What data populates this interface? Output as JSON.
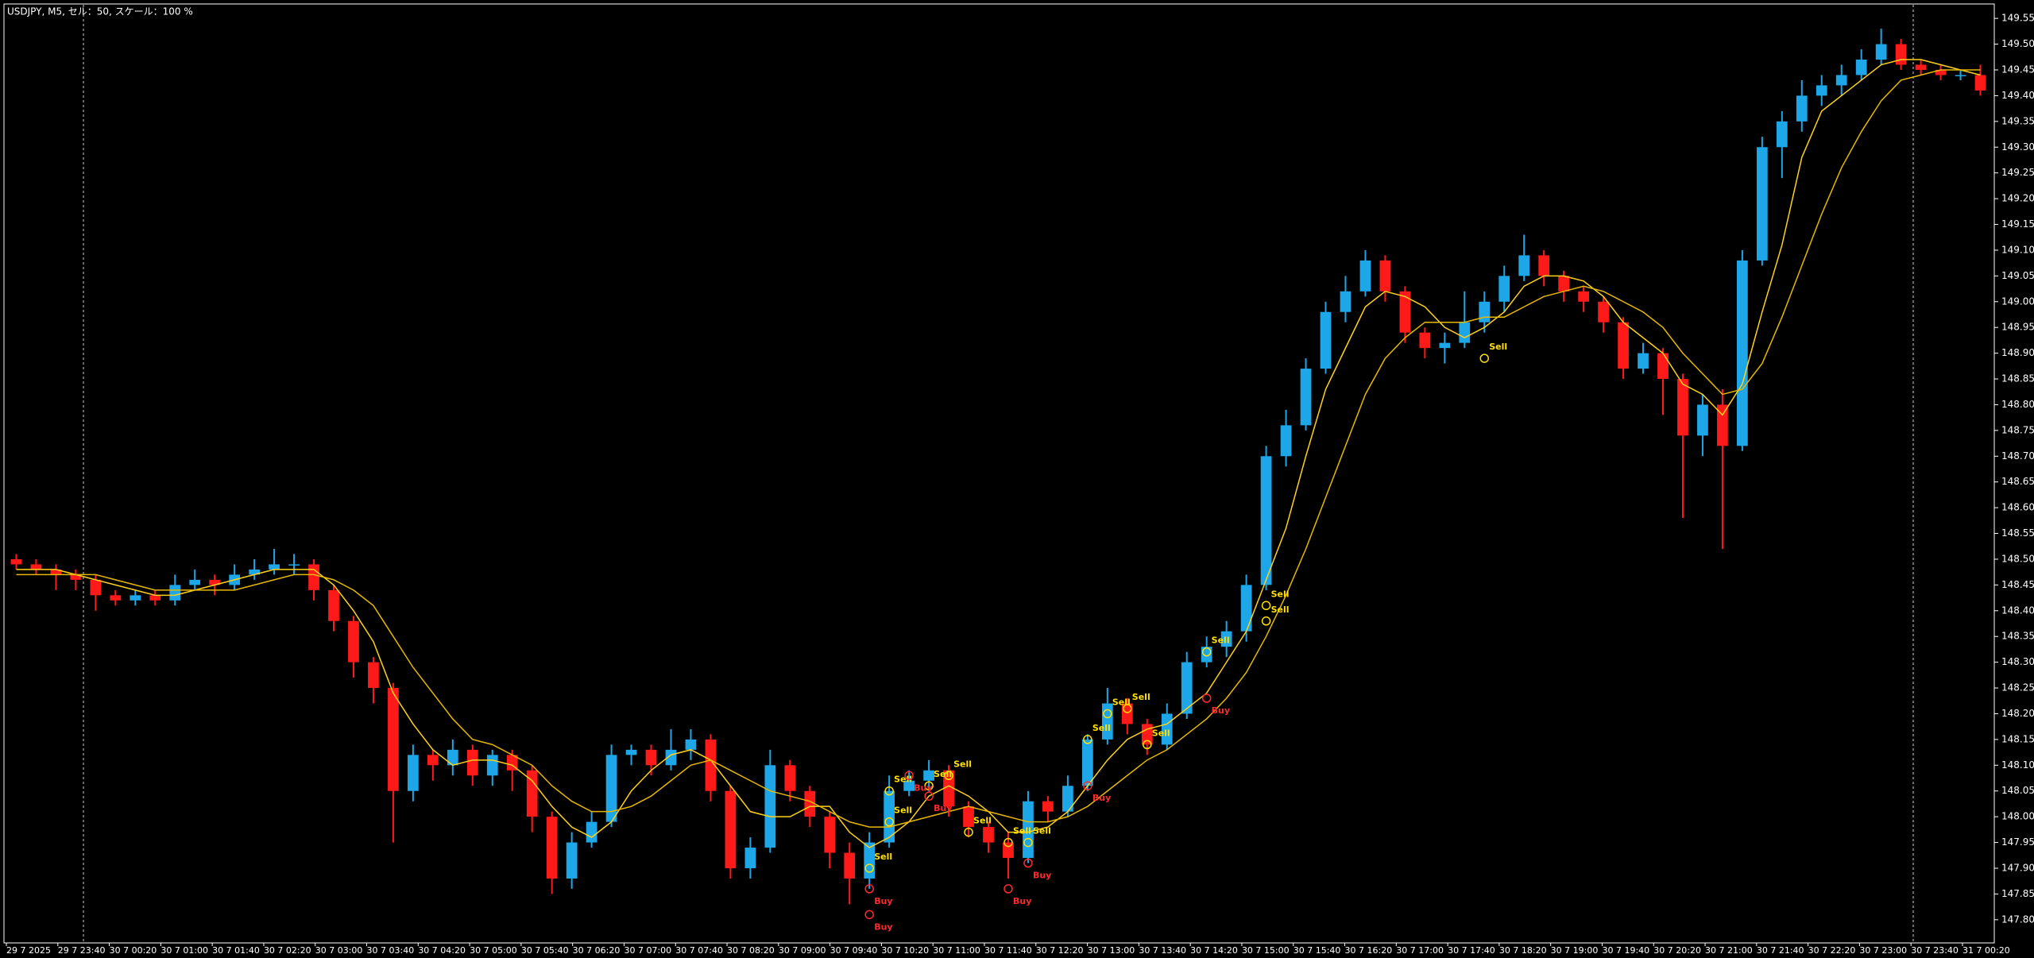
{
  "chart_data": {
    "type": "candlestick",
    "title": "USDJPY, M5, セル：50, スケール：100 %",
    "colors": {
      "up": "#1ea7e8",
      "down": "#ff1a1a"
    },
    "open": [
      148.5,
      148.49,
      148.48,
      148.47,
      148.46,
      148.43,
      148.42,
      148.43,
      148.42,
      148.45,
      148.46,
      148.45,
      148.47,
      148.48,
      148.49,
      148.49,
      148.44,
      148.38,
      148.3,
      148.25,
      148.05,
      148.12,
      148.1,
      148.13,
      148.08,
      148.12,
      148.09,
      148.0,
      147.88,
      147.95,
      147.99,
      148.12,
      148.13,
      148.1,
      148.13,
      148.15,
      148.05,
      147.9,
      147.94,
      148.1,
      148.05,
      148.0,
      147.93,
      147.88,
      147.95,
      148.05,
      148.07,
      148.09,
      148.02,
      147.98,
      147.95,
      147.92,
      148.03,
      148.01,
      148.06,
      148.15,
      148.22,
      148.18,
      148.14,
      148.2,
      148.3,
      148.33,
      148.36,
      148.45,
      148.7,
      148.76,
      148.87,
      148.98,
      149.02,
      149.08,
      149.02,
      148.94,
      148.91,
      148.92,
      148.96,
      149.0,
      149.05,
      149.09,
      149.05,
      149.02,
      149.0,
      148.96,
      148.87,
      148.9,
      148.85,
      148.74,
      148.8,
      148.72,
      149.08,
      149.3,
      149.35,
      149.4,
      149.42,
      149.44,
      149.47,
      149.5,
      149.46,
      149.45,
      149.44,
      149.44
    ],
    "high": [
      148.51,
      148.5,
      148.49,
      148.48,
      148.47,
      148.44,
      148.44,
      148.44,
      148.47,
      148.48,
      148.47,
      148.49,
      148.5,
      148.52,
      148.51,
      148.5,
      148.45,
      148.39,
      148.31,
      148.26,
      148.14,
      148.13,
      148.15,
      148.14,
      148.13,
      148.13,
      148.1,
      148.01,
      147.97,
      148.01,
      148.14,
      148.14,
      148.14,
      148.17,
      148.17,
      148.16,
      148.06,
      147.96,
      148.13,
      148.11,
      148.06,
      148.01,
      147.95,
      147.97,
      148.08,
      148.09,
      148.11,
      148.1,
      148.03,
      147.99,
      147.97,
      148.05,
      148.04,
      148.08,
      148.16,
      148.25,
      148.23,
      148.19,
      148.22,
      148.32,
      148.35,
      148.38,
      148.47,
      148.72,
      148.79,
      148.89,
      149.0,
      149.05,
      149.1,
      149.09,
      149.03,
      148.95,
      148.94,
      149.02,
      149.02,
      149.07,
      149.13,
      149.1,
      149.06,
      149.03,
      149.01,
      148.97,
      148.92,
      148.91,
      148.86,
      148.82,
      148.83,
      149.1,
      149.32,
      149.37,
      149.43,
      149.44,
      149.46,
      149.49,
      149.53,
      149.51,
      149.47,
      149.46,
      149.45,
      149.46
    ],
    "low": [
      148.48,
      148.47,
      148.44,
      148.44,
      148.4,
      148.41,
      148.41,
      148.41,
      148.41,
      148.44,
      148.43,
      148.44,
      148.46,
      148.47,
      148.47,
      148.42,
      148.36,
      148.27,
      148.22,
      147.95,
      148.03,
      148.07,
      148.08,
      148.06,
      148.06,
      148.05,
      147.97,
      147.85,
      147.86,
      147.94,
      147.98,
      148.1,
      148.08,
      148.09,
      148.11,
      148.03,
      147.88,
      147.88,
      147.93,
      148.03,
      147.98,
      147.9,
      147.83,
      147.86,
      147.94,
      148.04,
      148.05,
      148.0,
      147.96,
      147.93,
      147.88,
      147.91,
      147.99,
      148.0,
      148.05,
      148.14,
      148.16,
      148.12,
      148.13,
      148.19,
      148.29,
      148.31,
      148.34,
      148.44,
      148.68,
      148.75,
      148.86,
      148.96,
      149.01,
      149.0,
      148.92,
      148.89,
      148.88,
      148.91,
      148.94,
      148.98,
      149.04,
      149.03,
      149.0,
      148.98,
      148.94,
      148.85,
      148.86,
      148.78,
      148.58,
      148.7,
      148.52,
      148.71,
      149.07,
      149.24,
      149.33,
      149.38,
      149.4,
      149.43,
      149.46,
      149.45,
      149.44,
      149.43,
      149.43,
      149.4
    ],
    "close": [
      148.49,
      148.48,
      148.47,
      148.46,
      148.43,
      148.42,
      148.43,
      148.42,
      148.45,
      148.46,
      148.45,
      148.47,
      148.48,
      148.49,
      148.49,
      148.44,
      148.38,
      148.3,
      148.25,
      148.05,
      148.12,
      148.1,
      148.13,
      148.08,
      148.12,
      148.09,
      148.0,
      147.88,
      147.95,
      147.99,
      148.12,
      148.13,
      148.1,
      148.13,
      148.15,
      148.05,
      147.9,
      147.94,
      148.1,
      148.05,
      148.0,
      147.93,
      147.88,
      147.95,
      148.05,
      148.07,
      148.09,
      148.02,
      147.98,
      147.95,
      147.92,
      148.03,
      148.01,
      148.06,
      148.15,
      148.22,
      148.18,
      148.14,
      148.2,
      148.3,
      148.33,
      148.36,
      148.45,
      148.7,
      148.76,
      148.87,
      148.98,
      149.02,
      149.08,
      149.02,
      148.94,
      148.91,
      148.92,
      148.96,
      149.0,
      149.05,
      149.09,
      149.05,
      149.02,
      149.0,
      148.96,
      148.87,
      148.9,
      148.85,
      148.74,
      148.8,
      148.72,
      149.08,
      149.3,
      149.35,
      149.4,
      149.42,
      149.44,
      149.47,
      149.5,
      149.46,
      149.45,
      149.44,
      149.44,
      149.41
    ],
    "series": [
      {
        "color": "#ffd21a",
        "values": [
          148.48,
          148.48,
          148.48,
          148.47,
          148.46,
          148.45,
          148.44,
          148.43,
          148.43,
          148.44,
          148.45,
          148.46,
          148.47,
          148.48,
          148.48,
          148.48,
          148.45,
          148.4,
          148.34,
          148.24,
          148.18,
          148.13,
          148.1,
          148.11,
          148.11,
          148.1,
          148.07,
          148.02,
          147.98,
          147.96,
          147.99,
          148.05,
          148.09,
          148.12,
          148.13,
          148.11,
          148.06,
          148.01,
          148.0,
          148.0,
          148.02,
          148.02,
          147.97,
          147.94,
          147.96,
          147.99,
          148.04,
          148.06,
          148.04,
          148.01,
          147.97,
          147.97,
          147.98,
          148.01,
          148.06,
          148.11,
          148.15,
          148.17,
          148.18,
          148.21,
          148.24,
          148.3,
          148.36,
          148.46,
          148.56,
          148.7,
          148.83,
          148.91,
          148.99,
          149.02,
          149.01,
          148.99,
          148.95,
          148.93,
          148.95,
          148.98,
          149.03,
          149.05,
          149.05,
          149.04,
          149.01,
          148.96,
          148.93,
          148.9,
          148.84,
          148.82,
          148.78,
          148.84,
          148.98,
          149.11,
          149.28,
          149.37,
          149.4,
          149.43,
          149.46,
          149.47,
          149.47,
          149.46,
          149.45,
          149.44
        ]
      },
      {
        "color": "#e6b800",
        "values": [
          148.47,
          148.47,
          148.47,
          148.47,
          148.47,
          148.46,
          148.45,
          148.44,
          148.44,
          148.44,
          148.44,
          148.44,
          148.45,
          148.46,
          148.47,
          148.47,
          148.46,
          148.44,
          148.41,
          148.35,
          148.29,
          148.24,
          148.19,
          148.15,
          148.14,
          148.12,
          148.1,
          148.06,
          148.03,
          148.01,
          148.01,
          148.02,
          148.04,
          148.07,
          148.1,
          148.11,
          148.09,
          148.07,
          148.05,
          148.04,
          148.03,
          148.01,
          147.99,
          147.98,
          147.98,
          147.99,
          148.0,
          148.01,
          148.02,
          148.01,
          148.0,
          147.99,
          147.99,
          148.0,
          148.02,
          148.05,
          148.08,
          148.11,
          148.13,
          148.16,
          148.19,
          148.23,
          148.28,
          148.35,
          148.43,
          148.52,
          148.62,
          148.72,
          148.82,
          148.89,
          148.93,
          148.96,
          148.96,
          148.96,
          148.97,
          148.97,
          148.99,
          149.01,
          149.02,
          149.03,
          149.02,
          149.0,
          148.98,
          148.95,
          148.9,
          148.86,
          148.82,
          148.83,
          148.88,
          148.97,
          149.07,
          149.17,
          149.26,
          149.33,
          149.39,
          149.43,
          149.44,
          149.45,
          149.45,
          149.45
        ]
      }
    ],
    "ylim": [
      147.755,
      149.578
    ],
    "yticks": [
      {
        "value": 147.8,
        "label": "147.800"
      },
      {
        "value": 147.85,
        "label": "147.850"
      },
      {
        "value": 147.9,
        "label": "147.900"
      },
      {
        "value": 147.95,
        "label": "147.950"
      },
      {
        "value": 148.0,
        "label": "148.000"
      },
      {
        "value": 148.05,
        "label": "148.050"
      },
      {
        "value": 148.1,
        "label": "148.100"
      },
      {
        "value": 148.15,
        "label": "148.150"
      },
      {
        "value": 148.2,
        "label": "148.200"
      },
      {
        "value": 148.25,
        "label": "148.250"
      },
      {
        "value": 148.3,
        "label": "148.300"
      },
      {
        "value": 148.35,
        "label": "148.350"
      },
      {
        "value": 148.4,
        "label": "148.400"
      },
      {
        "value": 148.45,
        "label": "148.450"
      },
      {
        "value": 148.5,
        "label": "148.500"
      },
      {
        "value": 148.55,
        "label": "148.550"
      },
      {
        "value": 148.6,
        "label": "148.600"
      },
      {
        "value": 148.65,
        "label": "148.650"
      },
      {
        "value": 148.7,
        "label": "148.700"
      },
      {
        "value": 148.75,
        "label": "148.750"
      },
      {
        "value": 148.8,
        "label": "148.800"
      },
      {
        "value": 148.85,
        "label": "148.850"
      },
      {
        "value": 148.9,
        "label": "148.900"
      },
      {
        "value": 148.95,
        "label": "148.950"
      },
      {
        "value": 149.0,
        "label": "149.000"
      },
      {
        "value": 149.05,
        "label": "149.050"
      },
      {
        "value": 149.1,
        "label": "149.100"
      },
      {
        "value": 149.15,
        "label": "149.150"
      },
      {
        "value": 149.2,
        "label": "149.200"
      },
      {
        "value": 149.25,
        "label": "149.250"
      },
      {
        "value": 149.3,
        "label": "149.300"
      },
      {
        "value": 149.35,
        "label": "149.350"
      },
      {
        "value": 149.4,
        "label": "149.400"
      },
      {
        "value": 149.45,
        "label": "149.450"
      },
      {
        "value": 149.5,
        "label": "149.500"
      },
      {
        "value": 149.55,
        "label": "149.550"
      }
    ],
    "xtick_labels": [
      "29 7 2025",
      "29 7 23:40",
      "30 7 00:20",
      "30 7 01:00",
      "30 7 01:40",
      "30 7 02:20",
      "30 7 03:00",
      "30 7 03:40",
      "30 7 04:20",
      "30 7 05:00",
      "30 7 05:40",
      "30 7 06:20",
      "30 7 07:00",
      "30 7 07:40",
      "30 7 08:20",
      "30 7 09:00",
      "30 7 09:40",
      "30 7 10:20",
      "30 7 11:00",
      "30 7 11:40",
      "30 7 12:20",
      "30 7 13:00",
      "30 7 13:40",
      "30 7 14:20",
      "30 7 15:00",
      "30 7 15:40",
      "30 7 16:20",
      "30 7 17:00",
      "30 7 17:40",
      "30 7 18:20",
      "30 7 19:00",
      "30 7 19:40",
      "30 7 20:20",
      "30 7 21:00",
      "30 7 21:40",
      "30 7 22:20",
      "30 7 23:00",
      "30 7 23:40",
      "31 7 00:20"
    ],
    "sell_signals": {
      "label": "Sell",
      "color": "#ffe000",
      "points": [
        {
          "index": 43,
          "price": 147.9
        },
        {
          "index": 44,
          "price": 148.05
        },
        {
          "index": 44,
          "price": 147.99
        },
        {
          "index": 46,
          "price": 148.06
        },
        {
          "index": 47,
          "price": 148.08
        },
        {
          "index": 48,
          "price": 147.97
        },
        {
          "index": 50,
          "price": 147.95
        },
        {
          "index": 51,
          "price": 147.95
        },
        {
          "index": 54,
          "price": 148.15
        },
        {
          "index": 55,
          "price": 148.2
        },
        {
          "index": 56,
          "price": 148.21
        },
        {
          "index": 57,
          "price": 148.14
        },
        {
          "index": 60,
          "price": 148.32
        },
        {
          "index": 63,
          "price": 148.41
        },
        {
          "index": 63,
          "price": 148.38
        },
        {
          "index": 74,
          "price": 148.89
        }
      ]
    },
    "buy_signals": {
      "label": "Buy",
      "color": "#ff2a2a",
      "points": [
        {
          "index": 43,
          "price": 147.86
        },
        {
          "index": 43,
          "price": 147.81
        },
        {
          "index": 45,
          "price": 148.08
        },
        {
          "index": 46,
          "price": 148.04
        },
        {
          "index": 51,
          "price": 147.91
        },
        {
          "index": 50,
          "price": 147.86
        },
        {
          "index": 54,
          "price": 148.06
        },
        {
          "index": 60,
          "price": 148.23
        }
      ]
    }
  }
}
